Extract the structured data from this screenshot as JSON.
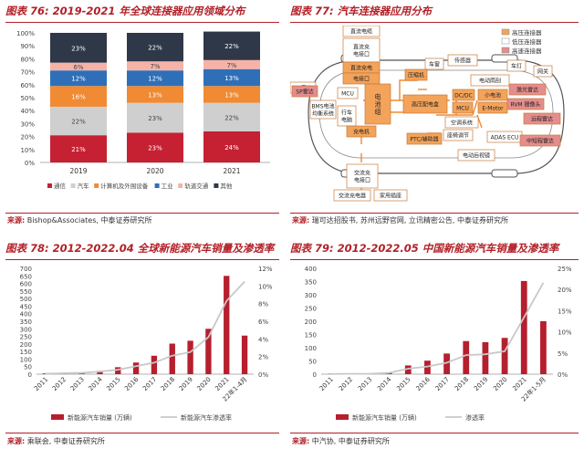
{
  "panels": [
    {
      "fig_no": "图表 76:",
      "fig_title": "2019-2021 年全球连接器应用领域分布",
      "source_label": "来源:",
      "source_text": "Bishop&Associates, 中泰证券研究所"
    },
    {
      "fig_no": "图表 77:",
      "fig_title": "汽车连接器应用分布",
      "source_label": "来源:",
      "source_text": "瑞可达招股书, 苏州远野官网, 立讯精密公告, 中泰证券研究所"
    },
    {
      "fig_no": "图表 78:",
      "fig_title": "2012-2022.04 全球新能源汽车销量及渗透率",
      "source_label": "来源:",
      "source_text": "乘联会, 中泰证券研究所"
    },
    {
      "fig_no": "图表 79:",
      "fig_title": "2012-2022.05 中国新能源汽车销量及渗透率",
      "source_label": "来源:",
      "source_text": "中汽协, 中泰证券研究所"
    }
  ],
  "diagram": {
    "legend": [
      {
        "label": "高压连接器",
        "color": "#f3a35a"
      },
      {
        "label": "低压连接器",
        "color": "#ffffff"
      },
      {
        "label": "高速连接器",
        "color": "#e58d8d"
      }
    ],
    "nodes": [
      {
        "id": "dc-charge",
        "label": "直流电缆",
        "type": "low"
      },
      {
        "id": "dc-port",
        "label": "直流充电接口",
        "type": "low"
      },
      {
        "id": "compressor",
        "label": "压缩机",
        "type": "high"
      },
      {
        "id": "battery",
        "label": "电池组",
        "type": "high"
      },
      {
        "id": "hv-box",
        "label": "高压配电盒",
        "type": "high"
      },
      {
        "id": "motor",
        "label": "电动机",
        "type": "high"
      },
      {
        "id": "bms",
        "label": "BMS电池均衡系统",
        "type": "low"
      },
      {
        "id": "ptc",
        "label": "PTC/辅助器",
        "type": "high"
      },
      {
        "id": "charger",
        "label": "充电机",
        "type": "high"
      },
      {
        "id": "ac-port",
        "label": "交流充电接口",
        "type": "low"
      },
      {
        "id": "ac-cable",
        "label": "交流充电器",
        "type": "low"
      },
      {
        "id": "home-cable",
        "label": "家用插座",
        "type": "low"
      },
      {
        "id": "camera",
        "label": "摄像头",
        "type": "speed"
      },
      {
        "id": "radar",
        "label": "雷达",
        "type": "speed"
      }
    ],
    "labels": {
      "dc_cable": "直流电缆",
      "dc_port": "直流充电接口",
      "speaker": "车窗",
      "sensor": "传感器",
      "car_light": "车灯",
      "gateway": "网关",
      "lidar": "激光雷达",
      "compressor": "压缩机",
      "sp_radar": "SP雷达",
      "mcu_l": "MCU",
      "battery": "电池组",
      "dcdc": "DC/DC",
      "small_motor": "小电池",
      "bms": "BMS电池均衡系统",
      "travel": "行车电脑",
      "hv_box": "高压配电盒",
      "mcu": "MCU",
      "emotor": "E-Motor",
      "camera": "RVM 摄像头",
      "cam_radar": "远程雷达",
      "ac_sys": "空调系统",
      "seat": "座椅调节",
      "adas": "ADAS ECU",
      "mid_radar": "中短程雷达",
      "charger": "充电机",
      "ptc": "PTC/辅助器",
      "rear_motor": "电动后视镜",
      "ac_port": "交流充电接口",
      "ac_cable": "交流充电器",
      "home": "家用插座",
      "elec_rain": "电动雨刮"
    }
  },
  "chart_data": [
    {
      "type": "bar",
      "stacked": true,
      "title": "2019-2021 年全球连接器应用领域分布",
      "categories": [
        "2019",
        "2020",
        "2021"
      ],
      "series": [
        {
          "name": "通信",
          "color": "#c62033",
          "values": [
            21,
            23,
            24
          ]
        },
        {
          "name": "汽车",
          "color": "#cfcfcf",
          "values": [
            22,
            23,
            22
          ]
        },
        {
          "name": "计算机及外围设备",
          "color": "#f08a33",
          "values": [
            16,
            13,
            13
          ]
        },
        {
          "name": "工业",
          "color": "#2f6fb8",
          "values": [
            12,
            12,
            13
          ]
        },
        {
          "name": "轨道交通",
          "color": "#f5b3a8",
          "values": [
            6,
            7,
            7
          ]
        },
        {
          "name": "其他",
          "color": "#2e3848",
          "values": [
            23,
            22,
            22
          ]
        }
      ],
      "data_labels": [
        [
          "21%",
          "23%",
          "24%"
        ],
        [
          "22%",
          "23%",
          "22%"
        ],
        [
          "16%",
          "13%",
          "13%"
        ],
        [
          "12%",
          "12%",
          "13%"
        ],
        [
          "6%",
          "7%",
          "7%"
        ],
        [
          "23%",
          "22%",
          "22%"
        ]
      ],
      "yticks": [
        "0%",
        "10%",
        "20%",
        "30%",
        "40%",
        "50%",
        "60%",
        "70%",
        "80%",
        "90%",
        "100%"
      ],
      "ylim": [
        0,
        100
      ]
    },
    {
      "type": "bar+line",
      "title": "2012-2022.04 全球新能源汽车销量及渗透率",
      "categories": [
        "2011",
        "2012",
        "2013",
        "2014",
        "2015",
        "2016",
        "2017",
        "2018",
        "2019",
        "2020",
        "2021",
        "22年1-4月"
      ],
      "bar_series": {
        "name": "新能源汽车销量 (万辆)",
        "color": "#b51f2e",
        "values": [
          5,
          9,
          12,
          22,
          46,
          77,
          122,
          202,
          221,
          300,
          650,
          255
        ]
      },
      "line_series": {
        "name": "新能源汽车渗透率",
        "color": "#c8c8c8",
        "values": [
          0.05,
          0.1,
          0.15,
          0.3,
          0.5,
          0.9,
          1.3,
          2.1,
          2.5,
          4.2,
          8.3,
          10.5
        ]
      },
      "ylim_left": [
        0,
        700
      ],
      "ylim_right": [
        0,
        12
      ],
      "yticks_left": [
        "0",
        "50",
        "100",
        "150",
        "200",
        "250",
        "300",
        "350",
        "400",
        "450",
        "500",
        "550",
        "600",
        "650",
        "700"
      ],
      "yticks_right": [
        "0%",
        "2%",
        "4%",
        "6%",
        "8%",
        "10%",
        "12%"
      ]
    },
    {
      "type": "bar+line",
      "title": "2012-2022.05 中国新能源汽车销量及渗透率",
      "categories": [
        "2011",
        "2012",
        "2013",
        "2014",
        "2015",
        "2016",
        "2017",
        "2018",
        "2019",
        "2020",
        "2021",
        "22年1-5月"
      ],
      "bar_series": {
        "name": "新能源汽车销量 (万辆)",
        "color": "#b51f2e",
        "values": [
          1,
          1,
          2,
          7,
          33,
          51,
          78,
          125,
          121,
          137,
          352,
          200
        ]
      },
      "line_series": {
        "name": "渗透率",
        "color": "#c8c8c8",
        "values": [
          0.05,
          0.08,
          0.1,
          0.3,
          1.3,
          1.8,
          2.7,
          4.5,
          4.7,
          5.4,
          13.4,
          21.6
        ]
      },
      "ylim_left": [
        0,
        400
      ],
      "ylim_right": [
        0,
        25
      ],
      "yticks_left": [
        "0",
        "50",
        "100",
        "150",
        "200",
        "250",
        "300",
        "350",
        "400"
      ],
      "yticks_right": [
        "0%",
        "5%",
        "10%",
        "15%",
        "20%",
        "25%"
      ]
    }
  ]
}
